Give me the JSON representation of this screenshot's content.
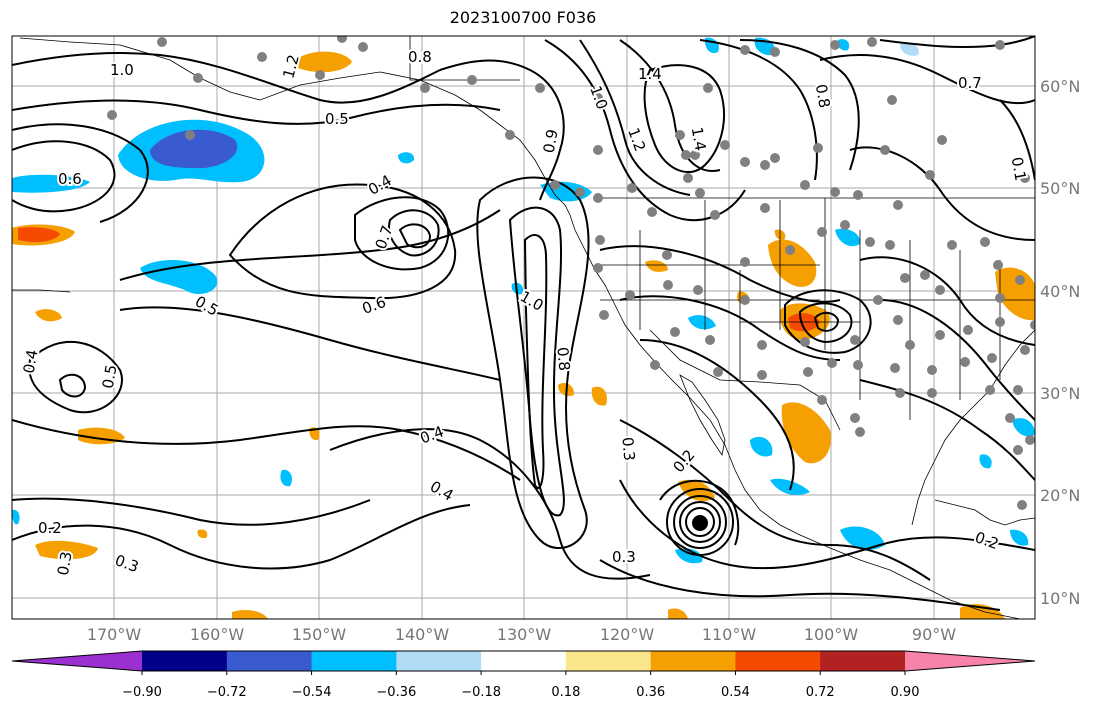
{
  "title": "2023100700 F036",
  "lon_ticks": [
    "170°W",
    "160°W",
    "150°W",
    "140°W",
    "130°W",
    "120°W",
    "110°W",
    "100°W",
    "90°W"
  ],
  "lat_ticks": [
    "60°N",
    "50°N",
    "40°N",
    "30°N",
    "20°N",
    "10°N"
  ],
  "colorbar": {
    "ticks": [
      "−0.90",
      "−0.72",
      "−0.54",
      "−0.36",
      "−0.18",
      "0.18",
      "0.36",
      "0.54",
      "0.72",
      "0.90"
    ],
    "colors": [
      "#9b30d0",
      "#00008b",
      "#3a5bd0",
      "#00bfff",
      "#b0dcf6",
      "#ffffff",
      "#fbe68b",
      "#f5a000",
      "#f54a00",
      "#b22222",
      "#f784a8"
    ]
  },
  "contour_labels": [
    "1.0",
    "1.2",
    "0.8",
    "1.4",
    "0.7",
    "0.5",
    "0.6",
    "0.4",
    "0.7",
    "1.0",
    "0.9",
    "1.2",
    "1.4",
    "0.8",
    "0.1",
    "0.5",
    "0.6",
    "0.4",
    "0.5",
    "0.4",
    "1.0",
    "0.8",
    "0.3",
    "0.2",
    "0.4",
    "0.2",
    "0.3",
    "0.3",
    "0.3",
    "0.2"
  ]
}
